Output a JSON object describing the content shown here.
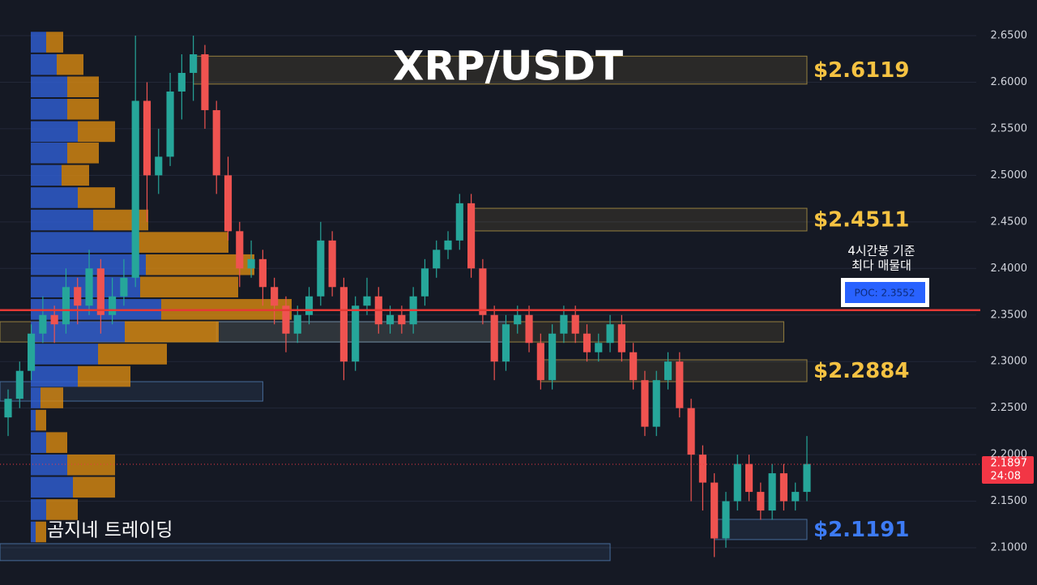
{
  "chart_data": {
    "type": "candlestick",
    "title": "XRP/USDT",
    "watermark": "곰지네 트레이딩",
    "annotation": [
      "4시간봉 기준",
      "최다 매물대"
    ],
    "ylim": [
      2.06,
      2.6883
    ],
    "yticks": [
      {
        "value": 2.65,
        "label": "2.6500"
      },
      {
        "value": 2.6,
        "label": "2.6000"
      },
      {
        "value": 2.55,
        "label": "2.5500"
      },
      {
        "value": 2.5,
        "label": "2.5000"
      },
      {
        "value": 2.45,
        "label": "2.4500"
      },
      {
        "value": 2.4,
        "label": "2.4000"
      },
      {
        "value": 2.35,
        "label": "2.3500"
      },
      {
        "value": 2.3,
        "label": "2.3000"
      },
      {
        "value": 2.25,
        "label": "2.2500"
      },
      {
        "value": 2.2,
        "label": "2.2000"
      },
      {
        "value": 2.15,
        "label": "2.1500"
      },
      {
        "value": 2.1,
        "label": "2.1000"
      }
    ],
    "grid": true,
    "up_color": "#26a69a",
    "down_color": "#ef5350",
    "ohlc": [
      [
        2.24,
        2.27,
        2.22,
        2.26
      ],
      [
        2.26,
        2.3,
        2.25,
        2.29
      ],
      [
        2.29,
        2.34,
        2.28,
        2.33
      ],
      [
        2.33,
        2.37,
        2.32,
        2.35
      ],
      [
        2.35,
        2.36,
        2.32,
        2.34
      ],
      [
        2.34,
        2.4,
        2.33,
        2.38
      ],
      [
        2.38,
        2.39,
        2.34,
        2.36
      ],
      [
        2.36,
        2.42,
        2.35,
        2.4
      ],
      [
        2.4,
        2.41,
        2.33,
        2.35
      ],
      [
        2.35,
        2.39,
        2.34,
        2.37
      ],
      [
        2.37,
        2.41,
        2.36,
        2.39
      ],
      [
        2.39,
        2.65,
        2.38,
        2.58
      ],
      [
        2.58,
        2.6,
        2.45,
        2.5
      ],
      [
        2.5,
        2.55,
        2.48,
        2.52
      ],
      [
        2.52,
        2.61,
        2.51,
        2.59
      ],
      [
        2.59,
        2.63,
        2.56,
        2.61
      ],
      [
        2.61,
        2.65,
        2.58,
        2.63
      ],
      [
        2.63,
        2.64,
        2.55,
        2.57
      ],
      [
        2.57,
        2.58,
        2.48,
        2.5
      ],
      [
        2.5,
        2.52,
        2.43,
        2.44
      ],
      [
        2.44,
        2.45,
        2.38,
        2.4
      ],
      [
        2.4,
        2.43,
        2.39,
        2.41
      ],
      [
        2.41,
        2.42,
        2.36,
        2.38
      ],
      [
        2.38,
        2.39,
        2.34,
        2.36
      ],
      [
        2.36,
        2.37,
        2.31,
        2.33
      ],
      [
        2.33,
        2.36,
        2.32,
        2.35
      ],
      [
        2.35,
        2.38,
        2.34,
        2.37
      ],
      [
        2.37,
        2.45,
        2.36,
        2.43
      ],
      [
        2.43,
        2.44,
        2.37,
        2.38
      ],
      [
        2.38,
        2.39,
        2.28,
        2.3
      ],
      [
        2.3,
        2.37,
        2.29,
        2.36
      ],
      [
        2.36,
        2.39,
        2.35,
        2.37
      ],
      [
        2.37,
        2.38,
        2.33,
        2.34
      ],
      [
        2.34,
        2.36,
        2.33,
        2.35
      ],
      [
        2.35,
        2.36,
        2.33,
        2.34
      ],
      [
        2.34,
        2.38,
        2.33,
        2.37
      ],
      [
        2.37,
        2.41,
        2.36,
        2.4
      ],
      [
        2.4,
        2.43,
        2.39,
        2.42
      ],
      [
        2.42,
        2.44,
        2.41,
        2.43
      ],
      [
        2.43,
        2.48,
        2.42,
        2.47
      ],
      [
        2.47,
        2.48,
        2.39,
        2.4
      ],
      [
        2.4,
        2.41,
        2.34,
        2.35
      ],
      [
        2.35,
        2.36,
        2.28,
        2.3
      ],
      [
        2.3,
        2.35,
        2.29,
        2.34
      ],
      [
        2.34,
        2.36,
        2.33,
        2.35
      ],
      [
        2.35,
        2.36,
        2.31,
        2.32
      ],
      [
        2.32,
        2.33,
        2.27,
        2.28
      ],
      [
        2.28,
        2.34,
        2.27,
        2.33
      ],
      [
        2.33,
        2.36,
        2.32,
        2.35
      ],
      [
        2.35,
        2.36,
        2.32,
        2.33
      ],
      [
        2.33,
        2.34,
        2.3,
        2.31
      ],
      [
        2.31,
        2.33,
        2.3,
        2.32
      ],
      [
        2.32,
        2.35,
        2.31,
        2.34
      ],
      [
        2.34,
        2.35,
        2.3,
        2.31
      ],
      [
        2.31,
        2.32,
        2.27,
        2.28
      ],
      [
        2.28,
        2.29,
        2.22,
        2.23
      ],
      [
        2.23,
        2.29,
        2.22,
        2.28
      ],
      [
        2.28,
        2.31,
        2.27,
        2.3
      ],
      [
        2.3,
        2.31,
        2.24,
        2.25
      ],
      [
        2.25,
        2.26,
        2.15,
        2.2
      ],
      [
        2.2,
        2.21,
        2.14,
        2.17
      ],
      [
        2.17,
        2.18,
        2.09,
        2.11
      ],
      [
        2.11,
        2.16,
        2.1,
        2.15
      ],
      [
        2.15,
        2.2,
        2.14,
        2.19
      ],
      [
        2.19,
        2.2,
        2.15,
        2.16
      ],
      [
        2.16,
        2.17,
        2.13,
        2.14
      ],
      [
        2.14,
        2.19,
        2.13,
        2.18
      ],
      [
        2.18,
        2.19,
        2.14,
        2.15
      ],
      [
        2.15,
        2.17,
        2.14,
        2.16
      ],
      [
        2.16,
        2.22,
        2.15,
        2.19
      ]
    ],
    "volume_profile": {
      "prices": [
        2.643,
        2.619,
        2.595,
        2.571,
        2.547,
        2.524,
        2.5,
        2.476,
        2.452,
        2.428,
        2.404,
        2.38,
        2.356,
        2.332,
        2.308,
        2.284,
        2.261,
        2.237,
        2.213,
        2.189,
        2.165,
        2.141,
        2.117
      ],
      "buy": [
        19,
        32,
        45,
        45,
        58,
        45,
        38,
        58,
        77,
        125,
        142,
        135,
        161,
        116,
        83,
        58,
        12,
        6,
        19,
        45,
        52,
        19,
        6
      ],
      "sell": [
        21,
        33,
        39,
        39,
        46,
        39,
        34,
        46,
        68,
        119,
        134,
        121,
        161,
        116,
        85,
        65,
        28,
        13,
        26,
        59,
        52,
        39,
        13
      ],
      "buy_color": "#2f5fd6",
      "sell_color": "#d98a10"
    },
    "zones": [
      {
        "label": "$2.6119",
        "top": 2.628,
        "bottom": 2.598,
        "from": 16,
        "to": 69,
        "color": "#c8a84a",
        "label_color": "#f5c242"
      },
      {
        "label": "$2.4511",
        "top": 2.4646,
        "bottom": 2.4403,
        "from": 40,
        "to": 69,
        "color": "#c8a84a",
        "label_color": "#f5c242"
      },
      {
        "label": "$2.2884",
        "top": 2.3019,
        "bottom": 2.2784,
        "from": 46,
        "to": 69,
        "color": "#c8a84a",
        "label_color": "#f5c242"
      },
      {
        "label": "$2.1191",
        "top": 2.1305,
        "bottom": 2.1088,
        "from": 61,
        "to": 69,
        "color": "#5a8cc8",
        "label_color": "#3d7bf5"
      },
      {
        "top": 2.3428,
        "bottom": 2.321,
        "from": 0,
        "to": 67,
        "color": "#c8a84a"
      },
      {
        "top": 2.3428,
        "bottom": 2.321,
        "from": 18,
        "to": 43,
        "color": "#5a8cc8"
      },
      {
        "top": 2.2784,
        "bottom": 2.2575,
        "from": 0,
        "to": 22,
        "color": "#5a8cc8"
      },
      {
        "top": 2.1044,
        "bottom": 2.0862,
        "from": 0,
        "to": 52,
        "color": "#5a8cc8"
      }
    ],
    "poc": {
      "value": 2.3552,
      "label": "POC: 2.3552",
      "color": "#e53935"
    },
    "last_price": {
      "value": 2.1897,
      "countdown": "24:08",
      "color": "#f23645"
    }
  }
}
